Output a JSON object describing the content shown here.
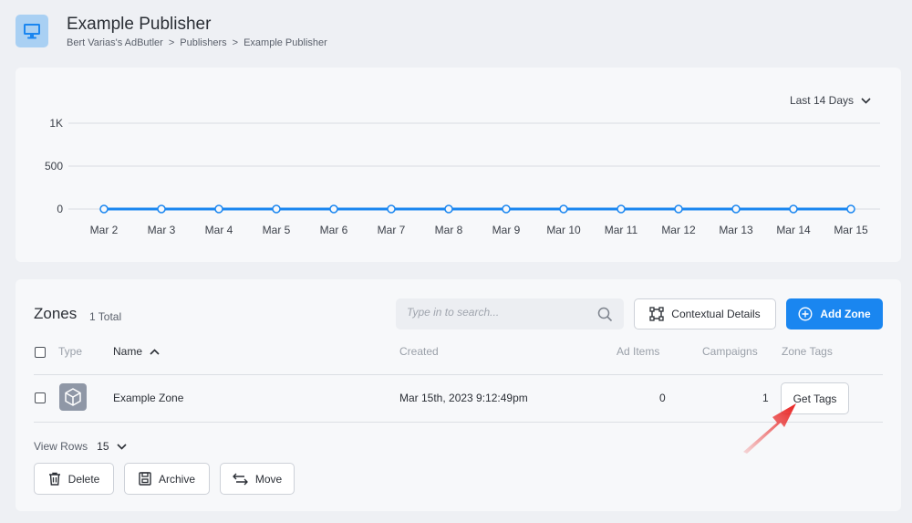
{
  "header": {
    "title": "Example Publisher",
    "breadcrumb": [
      "Bert Varias's AdButler",
      "Publishers",
      "Example Publisher"
    ],
    "breadcrumb_separator": ">",
    "icon": "monitor-icon"
  },
  "chart": {
    "range_label": "Last 14 Days"
  },
  "chart_data": {
    "type": "line",
    "title": "",
    "xlabel": "",
    "ylabel": "",
    "categories": [
      "Mar 2",
      "Mar 3",
      "Mar 4",
      "Mar 5",
      "Mar 6",
      "Mar 7",
      "Mar 8",
      "Mar 9",
      "Mar 10",
      "Mar 11",
      "Mar 12",
      "Mar 13",
      "Mar 14",
      "Mar 15"
    ],
    "series": [
      {
        "values": [
          0,
          0,
          0,
          0,
          0,
          0,
          0,
          0,
          0,
          0,
          0,
          0,
          0,
          0
        ],
        "color": "#1a86f0"
      }
    ],
    "ylim": [
      0,
      1000
    ],
    "yticks": [
      0,
      500,
      1000
    ],
    "ytick_labels": [
      "0",
      "500",
      "1K"
    ],
    "grid": true,
    "legend": "none"
  },
  "zones": {
    "title": "Zones",
    "total": "1 Total",
    "search_placeholder": "Type in to search...",
    "contextual_label": "Contextual Details",
    "add_label": "Add Zone",
    "columns": {
      "type": "Type",
      "name": "Name",
      "created": "Created",
      "ad_items": "Ad Items",
      "campaigns": "Campaigns",
      "zone_tags": "Zone Tags"
    },
    "rows": [
      {
        "name": "Example Zone",
        "created": "Mar 15th, 2023 9:12:49pm",
        "ad_items": "0",
        "campaigns": "1",
        "tags_button": "Get Tags"
      }
    ],
    "view_rows_label": "View Rows",
    "view_rows_value": "15",
    "actions": {
      "delete": "Delete",
      "archive": "Archive",
      "move": "Move"
    }
  },
  "colors": {
    "accent": "#1a86f0",
    "annotation_arrow": "#e8201f"
  }
}
